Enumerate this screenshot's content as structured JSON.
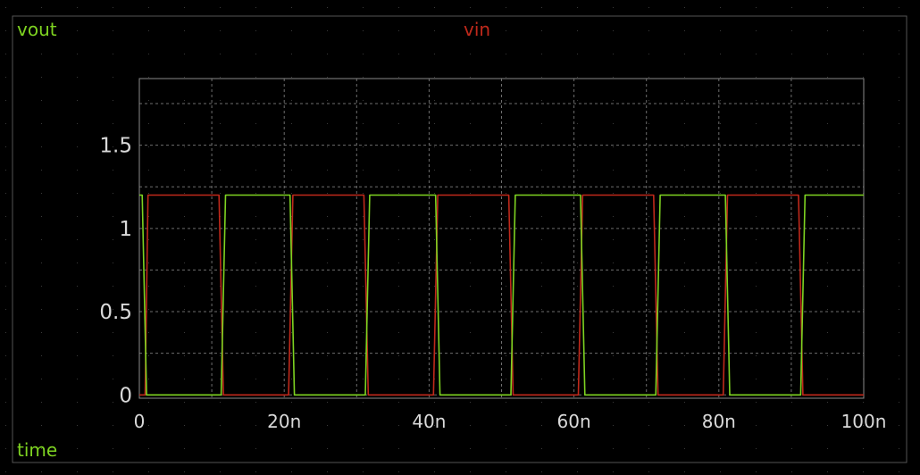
{
  "colors": {
    "background": "#000000",
    "frame": "#8a8a8a",
    "grid": "#6e6e6e",
    "tick_text": "#d9d9d9",
    "vout": "#7ed321",
    "vin": "#c0291b"
  },
  "labels": {
    "top_left": "vout",
    "top_center": "vin",
    "bottom_left": "time"
  },
  "chart_data": {
    "type": "line",
    "title": "",
    "xlabel": "time",
    "ylabel": "",
    "xlim": [
      0,
      100
    ],
    "ylim": [
      -0.02,
      1.9
    ],
    "x_unit": "n",
    "x_ticks": [
      0,
      20,
      40,
      60,
      80,
      100
    ],
    "x_tick_labels": [
      "0",
      "20n",
      "40n",
      "60n",
      "80n",
      "100n"
    ],
    "y_ticks": [
      0,
      0.5,
      1,
      1.5
    ],
    "y_tick_labels": [
      "0",
      "0.5",
      "1",
      "1.5"
    ],
    "x_grid": [
      0,
      10,
      20,
      30,
      40,
      50,
      60,
      70,
      80,
      90,
      100
    ],
    "y_grid": [
      0,
      0.25,
      0.5,
      0.75,
      1,
      1.25,
      1.5,
      1.75
    ],
    "grid": true,
    "series": [
      {
        "name": "vin",
        "color": "#c0291b",
        "x": [
          0,
          0.8,
          1.2,
          11.0,
          11.6,
          20.6,
          21.2,
          31.0,
          31.6,
          40.6,
          41.2,
          51.0,
          51.6,
          60.6,
          61.2,
          71.0,
          71.6,
          80.6,
          81.2,
          91.0,
          91.6,
          100
        ],
        "y": [
          0,
          0,
          1.2,
          1.2,
          0,
          0,
          1.2,
          1.2,
          0,
          0,
          1.2,
          1.2,
          0,
          0,
          1.2,
          1.2,
          0,
          0,
          1.2,
          1.2,
          0,
          0
        ]
      },
      {
        "name": "vout",
        "color": "#7ed321",
        "x": [
          0,
          0.4,
          1.0,
          11.3,
          11.9,
          20.8,
          21.4,
          31.2,
          31.8,
          40.9,
          41.5,
          51.3,
          51.9,
          60.9,
          61.5,
          71.3,
          71.9,
          80.9,
          81.5,
          91.3,
          91.9,
          100
        ],
        "y": [
          1.2,
          1.2,
          0,
          0,
          1.2,
          1.2,
          0,
          0,
          1.2,
          1.2,
          0,
          0,
          1.2,
          1.2,
          0,
          0,
          1.2,
          1.2,
          0,
          0,
          1.2,
          1.2
        ]
      }
    ]
  }
}
